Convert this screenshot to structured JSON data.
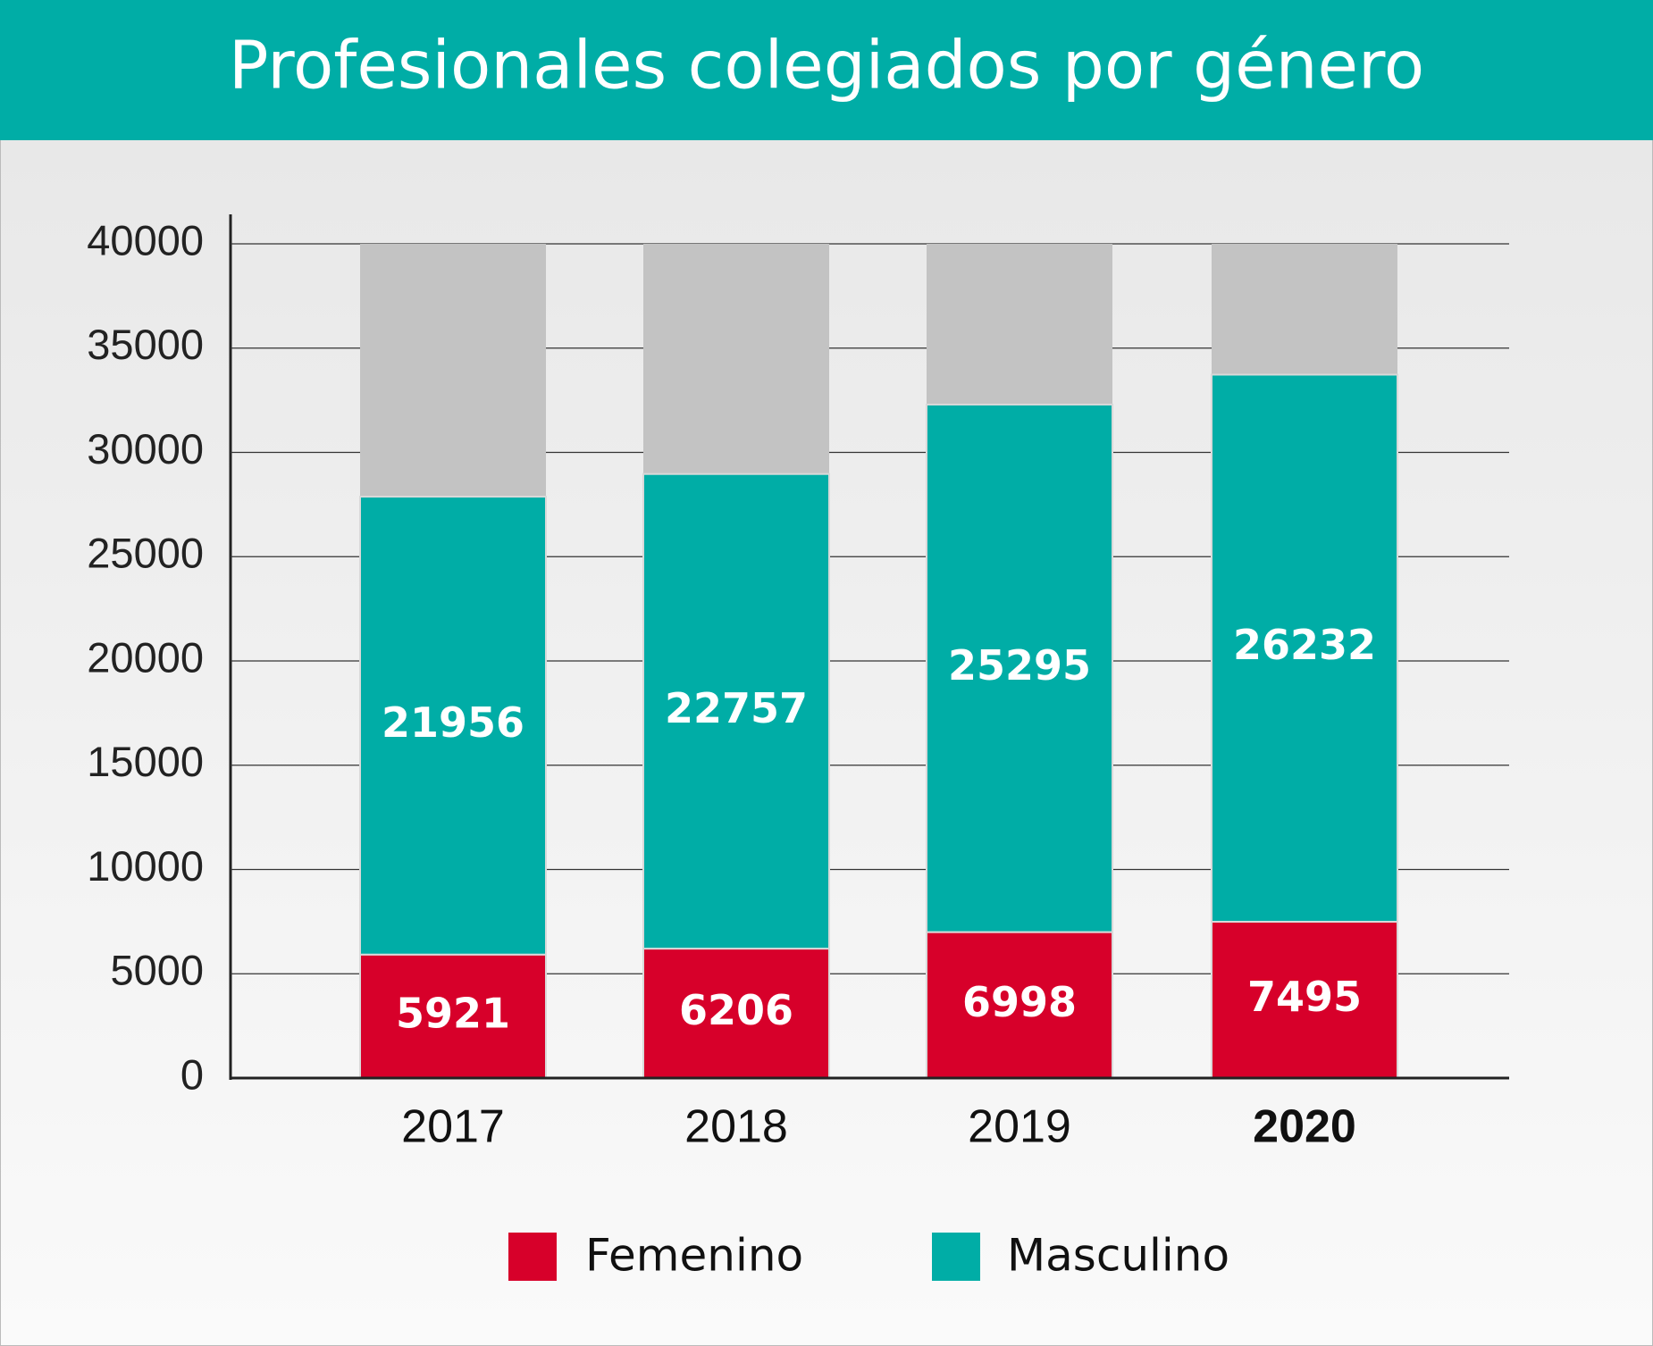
{
  "chart_data": {
    "type": "stacked_bar",
    "title": "Profesionales colegiados por género",
    "categories": [
      "2017",
      "2018",
      "2019",
      "2020"
    ],
    "series": [
      {
        "name": "Femenino",
        "color": "#d7002a",
        "values": [
          5921,
          6206,
          6998,
          7495
        ]
      },
      {
        "name": "Masculino",
        "color": "#00ada6",
        "values": [
          21956,
          22757,
          25295,
          26232
        ]
      }
    ],
    "ylim": [
      0,
      40000
    ],
    "yticks": [
      0,
      5000,
      10000,
      15000,
      20000,
      25000,
      30000,
      35000,
      40000
    ],
    "grid": true,
    "legend": "bottom"
  }
}
